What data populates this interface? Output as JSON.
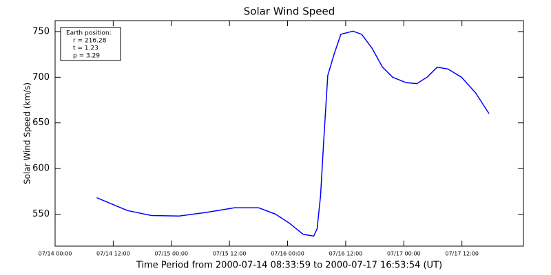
{
  "chart_data": {
    "type": "line",
    "title": "Solar Wind Speed",
    "x_label": "Time Period from 2000-07-14 08:33:59 to 2000-07-17 16:53:54 (UT)",
    "y_label": "Solar Wind Speed (km/s)",
    "annotations": [
      "Earth position:",
      "r = 216.28",
      "t = 1.23",
      "p = 3.29"
    ],
    "x": [
      8.6,
      14.9,
      19.9,
      25.6,
      31.3,
      37,
      42,
      45.5,
      48.4,
      51.2,
      53.4,
      54.1,
      54.8,
      55.5,
      56.3,
      57.6,
      59,
      61.5,
      63.3,
      65.4,
      67.6,
      69.7,
      72.5,
      74.7,
      76.8,
      78.9,
      81.1,
      83.9,
      86.8,
      89.6
    ],
    "values": [
      568,
      554,
      548.5,
      548,
      552,
      557,
      557,
      550,
      540,
      528,
      526,
      534,
      570,
      634,
      702,
      725,
      747,
      750.5,
      747,
      732,
      711,
      700,
      694,
      693,
      700,
      711,
      709,
      700,
      683,
      660
    ],
    "color": "#0000ff",
    "xlim": [
      0,
      96.7
    ],
    "xticks": [
      {
        "value": 0,
        "label": "07/14 00:00"
      },
      {
        "value": 12,
        "label": "07/14 12:00"
      },
      {
        "value": 24,
        "label": "07/15 00:00"
      },
      {
        "value": 36,
        "label": "07/15 12:00"
      },
      {
        "value": 48,
        "label": "07/16 00:00"
      },
      {
        "value": 60,
        "label": "07/16 12:00"
      },
      {
        "value": 72,
        "label": "07/17 00:00"
      },
      {
        "value": 84,
        "label": "07/17 12:00"
      }
    ],
    "ylim": [
      515,
      762
    ],
    "yticks": [
      550,
      600,
      650,
      700,
      750
    ]
  }
}
